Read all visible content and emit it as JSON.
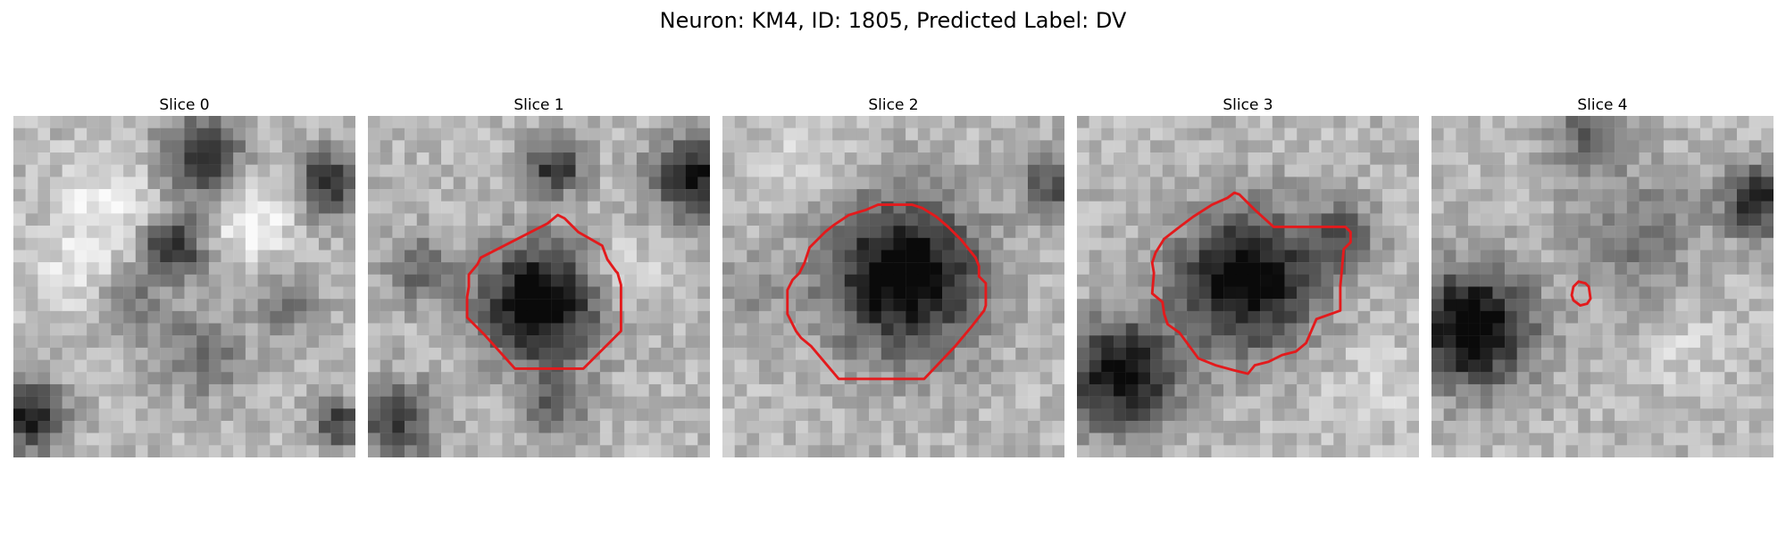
{
  "figure": {
    "title": "Neuron: KM4, ID: 1805, Predicted Label: DV",
    "contour_color": "#e31a1c",
    "colormap": "grayscale"
  },
  "panels": [
    {
      "title": "Slice 0"
    },
    {
      "title": "Slice 1"
    },
    {
      "title": "Slice 2"
    },
    {
      "title": "Slice 3"
    },
    {
      "title": "Slice 4"
    }
  ]
}
